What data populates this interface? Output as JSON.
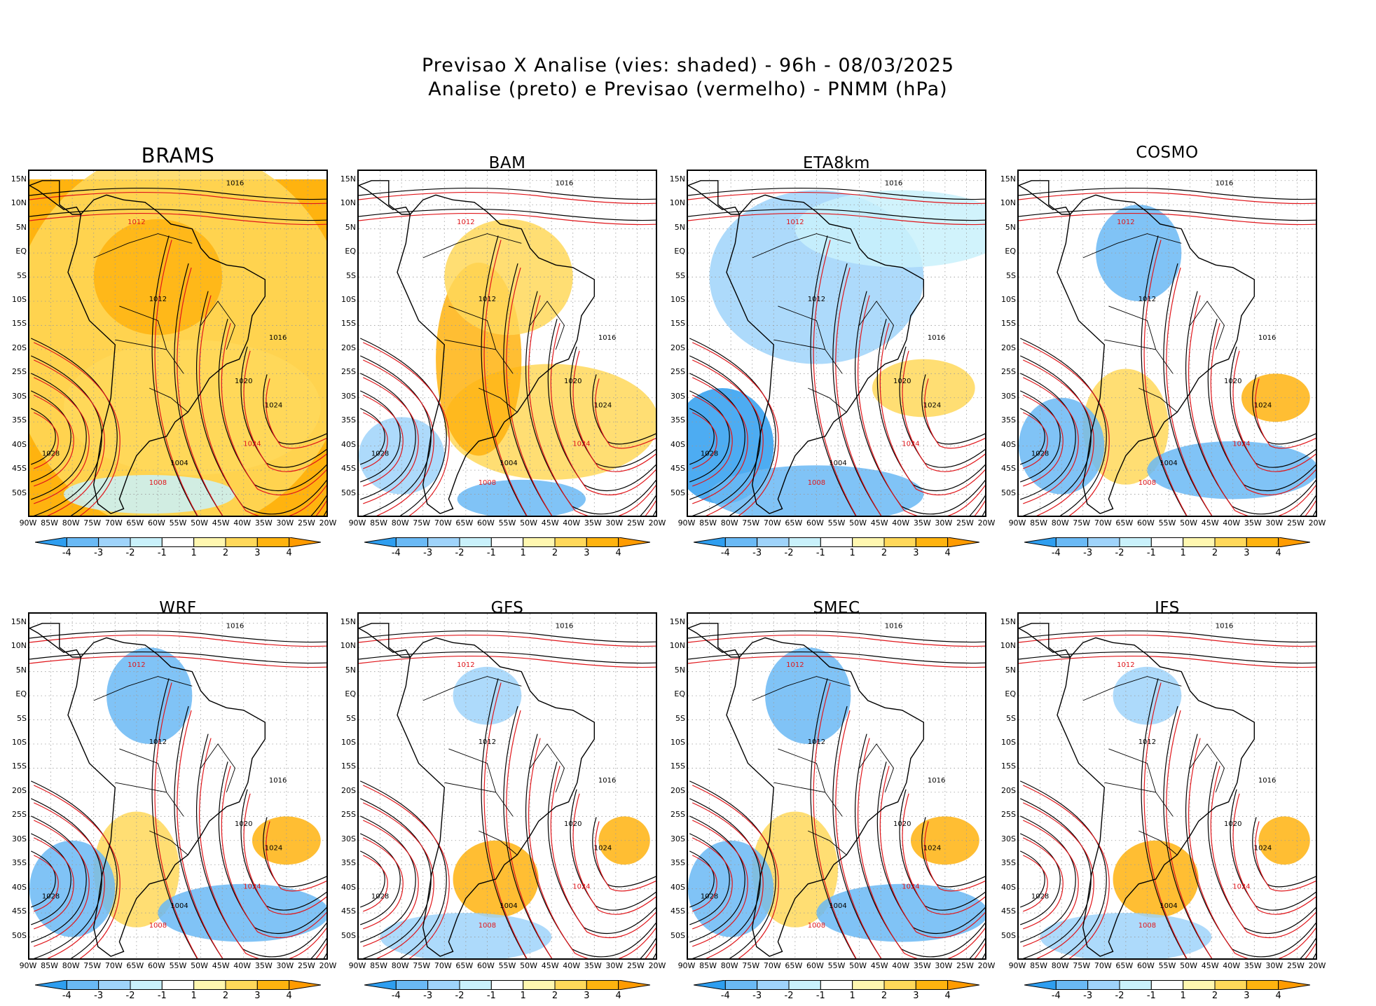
{
  "header": {
    "line1": "Previsao X Analise (vies: shaded) - 96h - 08/03/2025",
    "line2": "Analise (preto) e Previsao (vermelho) - PNMM (hPa)"
  },
  "lat_labels": [
    "15N",
    "10N",
    "5N",
    "EQ",
    "5S",
    "10S",
    "15S",
    "20S",
    "25S",
    "30S",
    "35S",
    "40S",
    "45S",
    "50S"
  ],
  "lon_labels": [
    "90W",
    "85W",
    "80W",
    "75W",
    "70W",
    "65W",
    "60W",
    "55W",
    "50W",
    "45W",
    "40W",
    "35W",
    "30W",
    "25W",
    "20W"
  ],
  "colorbar": {
    "labels": [
      "-4",
      "-3",
      "-2",
      "-1",
      "1",
      "2",
      "3",
      "4"
    ],
    "colors": [
      "#2e9ef0",
      "#6ab9f5",
      "#9fd3fa",
      "#c9f1fb",
      "#ffffff",
      "#fff7b0",
      "#ffd85a",
      "#ffb30f",
      "#ff9b00"
    ]
  },
  "colors": {
    "analysis": "#000000",
    "forecast": "#e0161b",
    "coast": "#000000"
  },
  "panels": [
    {
      "model": "BRAMS",
      "bias": "warm",
      "labels": [
        "1012",
        "1016",
        "1020",
        "1024",
        "1028",
        "1008",
        "1004"
      ]
    },
    {
      "model": "BAM",
      "bias": "warm-south",
      "labels": [
        "1012",
        "1016",
        "1020",
        "1024",
        "1028",
        "1008",
        "1004"
      ]
    },
    {
      "model": "ETA8km",
      "bias": "cold",
      "labels": [
        "1012",
        "1016",
        "1020",
        "1024",
        "1028",
        "1008",
        "1004"
      ]
    },
    {
      "model": "COSMO",
      "bias": "mixed",
      "labels": [
        "1012",
        "1016",
        "1020",
        "1024",
        "1028",
        "1008",
        "1004"
      ]
    },
    {
      "model": "WRF",
      "bias": "mixed",
      "labels": [
        "1012",
        "1016",
        "1020",
        "1024",
        "1028",
        "1008",
        "1004"
      ]
    },
    {
      "model": "GFS",
      "bias": "light",
      "labels": [
        "1012",
        "1016",
        "1020",
        "1024",
        "1028",
        "1008",
        "1004"
      ]
    },
    {
      "model": "SMEC",
      "bias": "mixed",
      "labels": [
        "1012",
        "1016",
        "1020",
        "1024",
        "1028",
        "1008",
        "1004"
      ]
    },
    {
      "model": "IFS",
      "bias": "light",
      "labels": [
        "1012",
        "1016",
        "1020",
        "1024",
        "1028",
        "1008",
        "1004"
      ]
    }
  ]
}
